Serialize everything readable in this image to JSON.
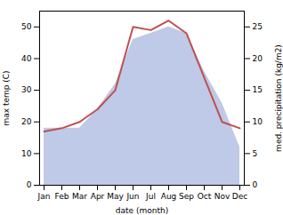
{
  "chart_data": {
    "type": "line",
    "categories": [
      "Jan",
      "Feb",
      "Mar",
      "Apr",
      "May",
      "Jun",
      "Jul",
      "Aug",
      "Sep",
      "Oct",
      "Nov",
      "Dec"
    ],
    "xlabel": "date (month)",
    "ylabel": "max temp (C)",
    "y2label": "med. precipitation (kg/m2)",
    "ylim": [
      0,
      55
    ],
    "yticks": [
      0,
      10,
      20,
      30,
      40,
      50
    ],
    "y2lim": [
      0,
      27.5
    ],
    "y2ticks": [
      0,
      5,
      10,
      15,
      20,
      25
    ],
    "series": [
      {
        "type": "area",
        "axis": "y2",
        "color": "#bfc9e8",
        "values": [
          9,
          9,
          9,
          12,
          16,
          23,
          24,
          25,
          24,
          18,
          13,
          6
        ]
      },
      {
        "type": "line",
        "color": "#c0504d",
        "values": [
          17,
          18,
          20,
          24,
          30,
          50,
          49,
          52,
          48,
          34,
          20,
          18
        ]
      }
    ]
  }
}
